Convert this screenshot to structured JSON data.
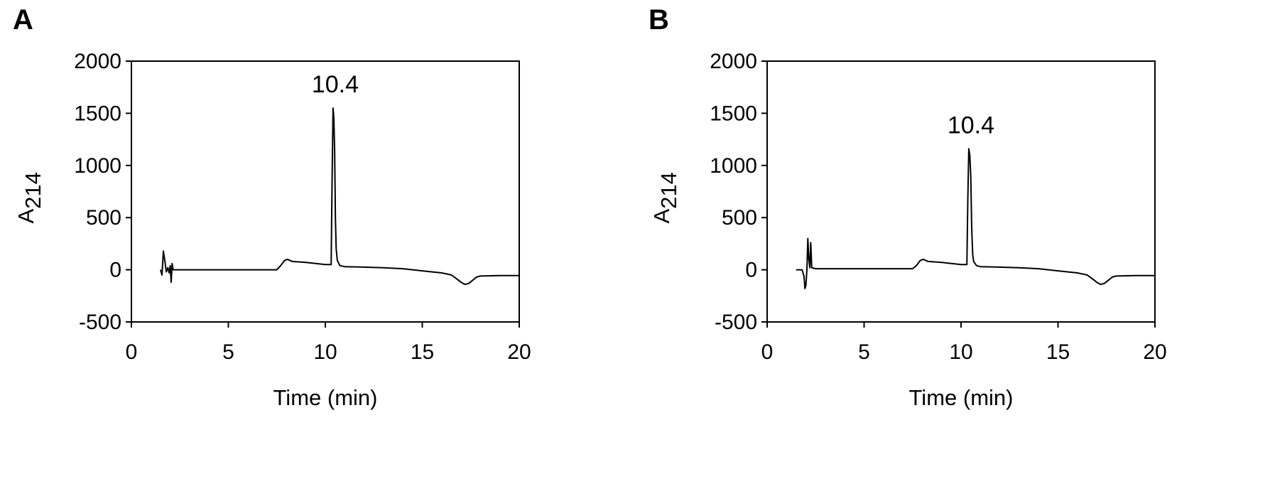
{
  "panels": [
    {
      "label": "A",
      "chart_data": {
        "type": "line",
        "xlabel": "Time (min)",
        "ylabel_main": "A",
        "ylabel_sub": "214",
        "xlim": [
          0,
          20
        ],
        "ylim": [
          -500,
          2000
        ],
        "xticks": [
          "0",
          "5",
          "10",
          "15",
          "20"
        ],
        "yticks": [
          "-500",
          "0",
          "500",
          "1000",
          "1500",
          "2000"
        ],
        "annotations": [
          {
            "text": "10.4",
            "x": 10.4,
            "y": 1550
          }
        ],
        "series": [
          {
            "x": [
              1.5,
              1.58,
              1.65,
              1.72,
              1.8,
              1.88,
              1.95,
              2.0,
              2.05,
              2.1,
              2.15,
              2.3,
              5,
              7.5,
              7.7,
              7.9,
              8.05,
              8.3,
              9,
              10,
              10.3,
              10.35,
              10.4,
              10.44,
              10.48,
              10.52,
              10.56,
              10.62,
              10.75,
              11,
              12,
              13,
              14,
              15,
              16,
              16.5,
              16.8,
              17.0,
              17.2,
              17.4,
              17.6,
              17.8,
              18,
              19,
              20
            ],
            "y": [
              0,
              -50,
              180,
              90,
              -20,
              20,
              -30,
              40,
              -120,
              60,
              0,
              0,
              0,
              0,
              40,
              90,
              100,
              80,
              70,
              50,
              50,
              900,
              1550,
              1450,
              1150,
              500,
              200,
              90,
              40,
              30,
              25,
              20,
              10,
              -10,
              -30,
              -50,
              -90,
              -120,
              -140,
              -130,
              -100,
              -70,
              -60,
              -55,
              -55
            ]
          }
        ]
      }
    },
    {
      "label": "B",
      "chart_data": {
        "type": "line",
        "xlabel": "Time (min)",
        "ylabel_main": "A",
        "ylabel_sub": "214",
        "xlim": [
          0,
          20
        ],
        "ylim": [
          -500,
          2000
        ],
        "xticks": [
          "0",
          "5",
          "10",
          "15",
          "20"
        ],
        "yticks": [
          "-500",
          "0",
          "500",
          "1000",
          "1500",
          "2000"
        ],
        "annotations": [
          {
            "text": "10.4",
            "x": 10.4,
            "y": 1160
          }
        ],
        "series": [
          {
            "x": [
              1.5,
              1.8,
              1.9,
              1.95,
              2.0,
              2.05,
              2.1,
              2.15,
              2.2,
              2.25,
              2.3,
              2.5,
              5,
              7.5,
              7.7,
              7.9,
              8.05,
              8.3,
              9,
              10,
              10.3,
              10.35,
              10.4,
              10.45,
              10.5,
              10.55,
              10.6,
              10.65,
              10.8,
              11,
              12,
              13,
              14,
              15,
              16,
              16.5,
              16.8,
              17.0,
              17.2,
              17.4,
              17.6,
              17.8,
              18,
              19,
              20
            ],
            "y": [
              0,
              0,
              -60,
              -180,
              -150,
              0,
              300,
              100,
              20,
              260,
              20,
              10,
              10,
              10,
              40,
              90,
              100,
              80,
              70,
              50,
              50,
              700,
              1160,
              1100,
              900,
              400,
              150,
              80,
              40,
              30,
              25,
              20,
              10,
              -10,
              -30,
              -50,
              -90,
              -120,
              -140,
              -130,
              -100,
              -70,
              -60,
              -55,
              -55
            ]
          }
        ]
      }
    }
  ]
}
